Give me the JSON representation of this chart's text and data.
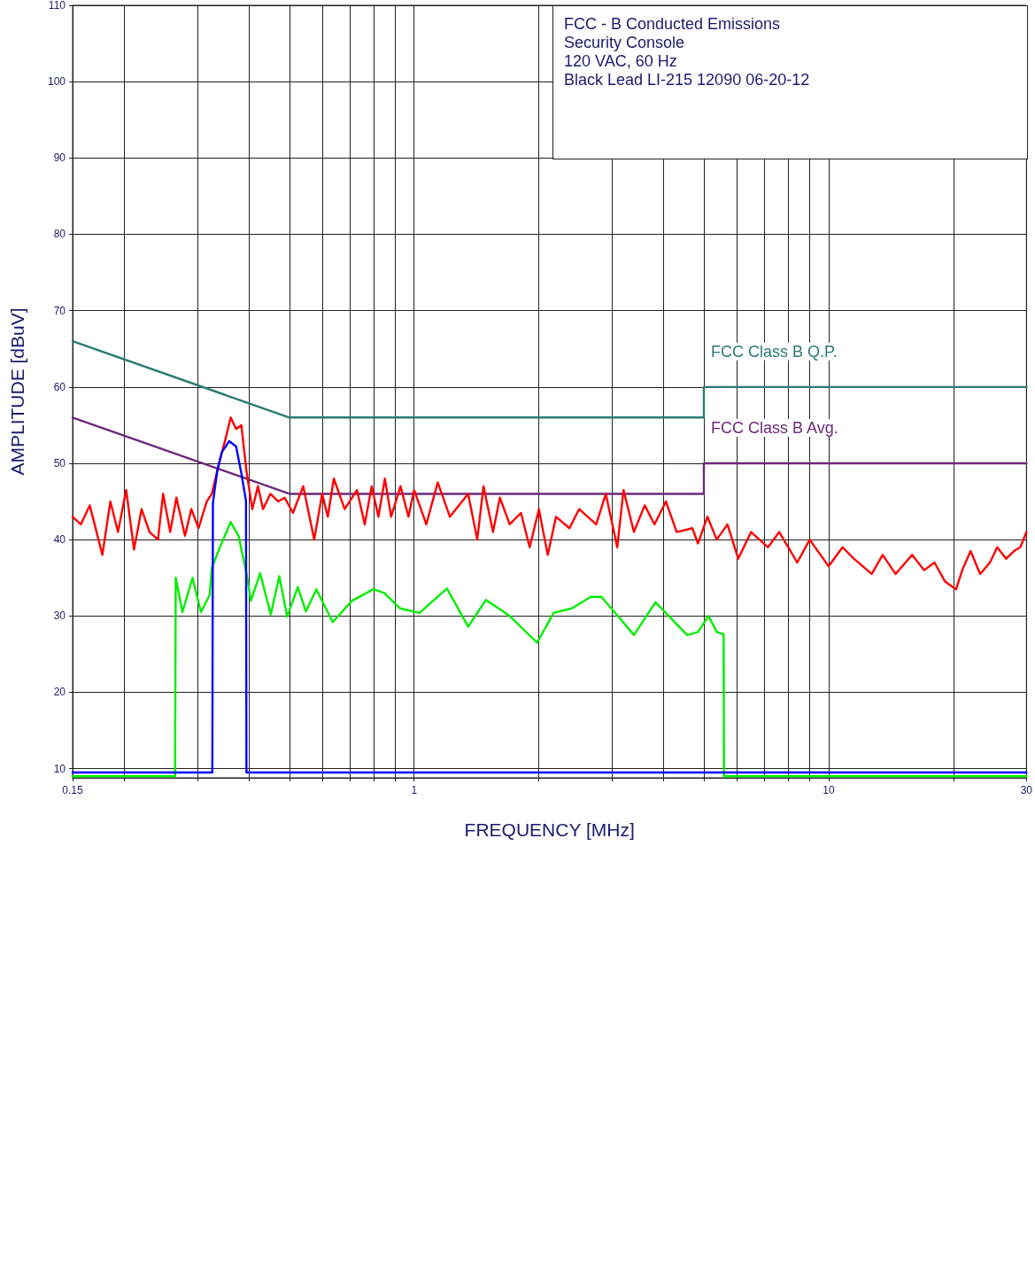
{
  "chart_data": {
    "type": "line",
    "title": "FCC - B Conducted Emissions",
    "annotations": [
      "Security Console",
      "120 VAC, 60 Hz",
      "Black Lead LI-215 12090 06-20-12"
    ],
    "xlabel": "FREQUENCY [MHz]",
    "ylabel": "AMPLITUDE [dBuV]",
    "log": "x",
    "xlim": [
      0.15,
      30
    ],
    "xticks": [
      0.15,
      {
        "value": 0.2,
        "label": null
      },
      {
        "value": 0.3,
        "label": null
      },
      {
        "value": 0.4,
        "label": null
      },
      {
        "value": 0.5,
        "label": null
      },
      {
        "value": 0.6,
        "label": null
      },
      {
        "value": 0.7,
        "label": null
      },
      {
        "value": 0.8,
        "label": null
      },
      {
        "value": 0.9,
        "label": null
      },
      1,
      {
        "value": 2,
        "label": null
      },
      {
        "value": 3,
        "label": null
      },
      {
        "value": 4,
        "label": null
      },
      {
        "value": 5,
        "label": null
      },
      {
        "value": 6,
        "label": null
      },
      {
        "value": 7,
        "label": null
      },
      {
        "value": 8,
        "label": null
      },
      {
        "value": 9,
        "label": null
      },
      10,
      {
        "value": 20,
        "label": null
      },
      30
    ],
    "ylim": [
      8.8,
      110
    ],
    "yticks": [
      10,
      20,
      30,
      40,
      50,
      60,
      70,
      80,
      90,
      100,
      110
    ],
    "grid": true,
    "legend": false,
    "marker": "none",
    "line_style": "solid",
    "series": [
      {
        "name": "FCC Class B Q.P.",
        "color": "#2a7b74",
        "x": [
          0.15,
          0.5,
          5,
          5,
          30
        ],
        "values": [
          66,
          56,
          56,
          60,
          60
        ]
      },
      {
        "name": "FCC Class B Avg.",
        "color": "#6b2a78",
        "x": [
          0.15,
          0.5,
          5,
          5,
          30
        ],
        "values": [
          56,
          46,
          46,
          50,
          50
        ]
      },
      {
        "color": "#ff0000",
        "x": [
          0.15,
          0.157,
          0.165,
          0.177,
          0.185,
          0.193,
          0.202,
          0.211,
          0.22,
          0.23,
          0.241,
          0.248,
          0.258,
          0.267,
          0.28,
          0.29,
          0.302,
          0.316,
          0.325,
          0.34,
          0.35,
          0.361,
          0.372,
          0.383,
          0.394,
          0.407,
          0.42,
          0.432,
          0.45,
          0.47,
          0.487,
          0.51,
          0.54,
          0.574,
          0.6,
          0.619,
          0.64,
          0.68,
          0.728,
          0.76,
          0.79,
          0.82,
          0.85,
          0.88,
          0.927,
          0.969,
          1.0,
          1.07,
          1.14,
          1.22,
          1.35,
          1.42,
          1.47,
          1.55,
          1.61,
          1.7,
          1.81,
          1.9,
          2.0,
          2.1,
          2.2,
          2.37,
          2.5,
          2.75,
          2.9,
          3.09,
          3.2,
          3.39,
          3.6,
          3.8,
          4.05,
          4.3,
          4.69,
          4.84,
          5.1,
          5.37,
          5.7,
          6.05,
          6.5,
          7.14,
          7.6,
          8.4,
          9.0,
          10.0,
          10.8,
          11.5,
          12.7,
          13.5,
          14.5,
          15.9,
          17,
          18,
          19.1,
          20.3,
          21,
          22,
          23.2,
          24.5,
          25.5,
          26.8,
          28,
          29,
          30
        ],
        "values": [
          43,
          42,
          44.5,
          38,
          45,
          41,
          46.5,
          38.7,
          44,
          41,
          40,
          46,
          41,
          45.5,
          40.5,
          44,
          41.5,
          45,
          46,
          50.5,
          53,
          56,
          54.5,
          55,
          49,
          44,
          47,
          44,
          46,
          45,
          45.5,
          43.5,
          47,
          40,
          46,
          43,
          48,
          44,
          46.5,
          42,
          47,
          43,
          48,
          43,
          47,
          43,
          46.5,
          42,
          47.5,
          43,
          46,
          40,
          47,
          41,
          45.5,
          42,
          43.5,
          39,
          44,
          38,
          43,
          41.5,
          44,
          42,
          46,
          39,
          46.5,
          41,
          44.5,
          42,
          45,
          41,
          41.5,
          39.5,
          43,
          40,
          42,
          37.5,
          41,
          39,
          41,
          37,
          40,
          36.5,
          39,
          37.5,
          35.5,
          38,
          35.5,
          38,
          36,
          37,
          34.5,
          33.5,
          36,
          38.5,
          35.5,
          37,
          39,
          37.5,
          38.5,
          39,
          41
        ]
      },
      {
        "color": "#00ee00",
        "x": [
          0.15,
          0.265,
          0.266,
          0.276,
          0.292,
          0.306,
          0.321,
          0.325,
          0.34,
          0.361,
          0.377,
          0.394,
          0.404,
          0.425,
          0.451,
          0.473,
          0.494,
          0.524,
          0.548,
          0.581,
          0.636,
          0.708,
          0.798,
          0.847,
          0.924,
          1.03,
          1.2,
          1.35,
          1.49,
          1.7,
          1.98,
          2.17,
          2.4,
          2.67,
          2.83,
          3.1,
          3.39,
          3.82,
          4.56,
          4.84,
          5.13,
          5.37,
          5.58,
          5.59,
          30
        ],
        "values": [
          9,
          9,
          35,
          30.5,
          35,
          30.5,
          32.7,
          36.3,
          39,
          42.3,
          40.5,
          35.6,
          32,
          35.6,
          30.2,
          35.2,
          29.9,
          33.8,
          30.6,
          33.5,
          29.2,
          32,
          33.5,
          33,
          31,
          30.4,
          33.6,
          28.6,
          32.1,
          30,
          26.5,
          30.4,
          31,
          32.5,
          32.5,
          30,
          27.5,
          31.8,
          27.5,
          27.9,
          30,
          27.9,
          27.6,
          9,
          9
        ]
      },
      {
        "color": "#0000ff",
        "x": [
          0.15,
          0.326,
          0.327,
          0.335,
          0.344,
          0.358,
          0.372,
          0.383,
          0.393,
          0.394,
          30
        ],
        "values": [
          9.5,
          9.5,
          44.8,
          49,
          51.5,
          52.9,
          52.2,
          48.7,
          45.1,
          9.5,
          9.5
        ]
      }
    ]
  }
}
